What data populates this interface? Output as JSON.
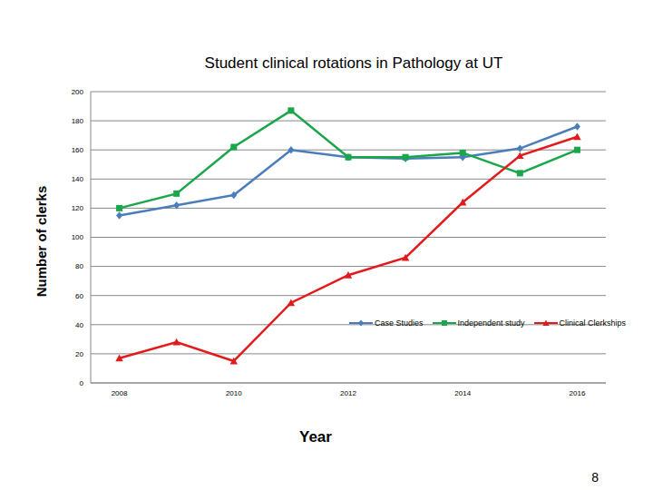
{
  "chart_data": {
    "type": "line",
    "title": "Student clinical rotations in Pathology at UT",
    "x_label": "Year",
    "y_label": "Number of clerks",
    "annotations": [
      "8"
    ],
    "x": [
      2008,
      2009,
      2010,
      2011,
      2012,
      2013,
      2014,
      2015,
      2016
    ],
    "series": [
      {
        "name": "Case Studies",
        "color": "#4a7ebb",
        "marker": "diamond",
        "values": [
          115,
          122,
          129,
          160,
          155,
          154,
          155,
          161,
          176
        ]
      },
      {
        "name": "Independent study",
        "color": "#1aa64a",
        "marker": "square",
        "values": [
          120,
          130,
          162,
          187,
          155,
          155,
          158,
          144,
          160
        ]
      },
      {
        "name": "Clinical Clerkships",
        "color": "#e31a1c",
        "marker": "triangle",
        "values": [
          17,
          28,
          15,
          55,
          74,
          86,
          124,
          156,
          169
        ]
      }
    ],
    "xlim": [
      2007.5,
      2016.5
    ],
    "xticks": [
      2008,
      2010,
      2012,
      2014,
      2016
    ],
    "ylim": [
      0,
      200
    ],
    "yticks": [
      0,
      20,
      40,
      60,
      80,
      100,
      120,
      140,
      160,
      180,
      200
    ],
    "grid": true,
    "legend": "lower right"
  }
}
